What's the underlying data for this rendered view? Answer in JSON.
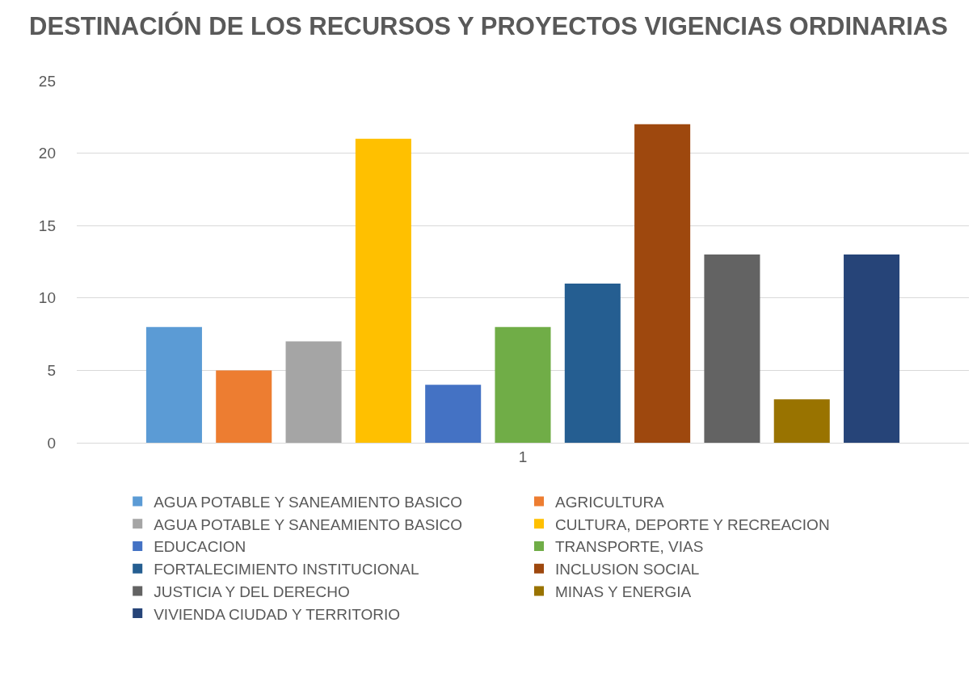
{
  "chart_data": {
    "type": "bar",
    "title": "DESTINACIÓN DE LOS RECURSOS Y PROYECTOS VIGENCIAS ORDINARIAS",
    "categories": [
      "1"
    ],
    "series": [
      {
        "name": "AGUA POTABLE Y SANEAMIENTO BASICO",
        "color": "#5b9bd5",
        "values": [
          8
        ]
      },
      {
        "name": "AGRICULTURA",
        "color": "#ed7d31",
        "values": [
          5
        ]
      },
      {
        "name": "AGUA POTABLE Y SANEAMIENTO BASICO",
        "color": "#a5a5a5",
        "values": [
          7
        ]
      },
      {
        "name": "CULTURA, DEPORTE Y RECREACION",
        "color": "#ffc000",
        "values": [
          21
        ]
      },
      {
        "name": "EDUCACION",
        "color": "#4472c4",
        "values": [
          4
        ]
      },
      {
        "name": "TRANSPORTE, VIAS",
        "color": "#70ad47",
        "values": [
          8
        ]
      },
      {
        "name": "FORTALECIMIENTO INSTITUCIONAL",
        "color": "#255e91",
        "values": [
          11
        ]
      },
      {
        "name": "INCLUSION SOCIAL",
        "color": "#9e480e",
        "values": [
          22
        ]
      },
      {
        "name": "JUSTICIA Y DEL DERECHO",
        "color": "#636363",
        "values": [
          13
        ]
      },
      {
        "name": "MINAS Y ENERGIA",
        "color": "#997300",
        "values": [
          3
        ]
      },
      {
        "name": "VIVIENDA CIUDAD Y TERRITORIO",
        "color": "#264478",
        "values": [
          13
        ]
      }
    ],
    "ylim": [
      0,
      25
    ],
    "yticks": [
      0,
      5,
      10,
      15,
      20,
      25
    ],
    "grid": "y",
    "legend": "bottom"
  }
}
